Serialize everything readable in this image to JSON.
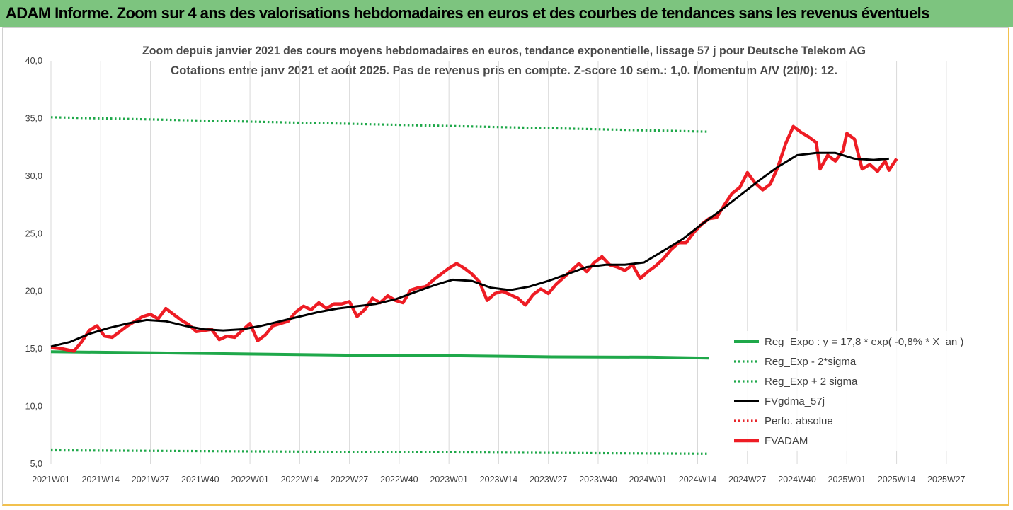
{
  "header": {
    "title": "ADAM Informe. Zoom sur 4 ans des valorisations hebdomadaires en euros et des courbes de tendances sans les revenus éventuels"
  },
  "chart_data": {
    "type": "line",
    "title": "Zoom depuis janvier 2021 des cours moyens hebdomadaires en euros, tendance exponentielle, lissage 57 j pour Deutsche Telekom AG",
    "subtitle": "Cotations entre janv 2021 et août 2025. Pas de revenus pris en compte. Z-score 10 sem.: 1,0. Momentum A/V (20/0): 12.",
    "xlabel": "",
    "ylabel": "",
    "ylim": [
      5,
      40
    ],
    "yticks": [
      "5,0",
      "10,0",
      "15,0",
      "20,0",
      "25,0",
      "30,0",
      "35,0",
      "40,0"
    ],
    "xticks": [
      "2021W01",
      "2021W14",
      "2021W27",
      "2021W40",
      "2022W01",
      "2022W14",
      "2022W27",
      "2022W40",
      "2023W01",
      "2023W14",
      "2023W27",
      "2023W40",
      "2024W01",
      "2024W14",
      "2024W27",
      "2024W40",
      "2025W01",
      "2025W14",
      "2025W27"
    ],
    "grid": "vertical",
    "legend_position": "bottom-right",
    "series": [
      {
        "name": "Reg_Expo : y = 17,8 * exp( -0,8% *  X_an )",
        "color": "#1fa84a",
        "style": "solid",
        "points": [
          [
            0,
            14.75
          ],
          [
            27,
            14.65
          ],
          [
            53,
            14.55
          ],
          [
            79,
            14.45
          ],
          [
            105,
            14.4
          ],
          [
            131,
            14.3
          ],
          [
            157,
            14.28
          ],
          [
            172,
            14.2
          ]
        ]
      },
      {
        "name": "Reg_Exp - 2*sigma",
        "color": "#1fa84a",
        "style": "dotted",
        "points": [
          [
            0,
            6.2
          ],
          [
            172,
            5.9
          ]
        ]
      },
      {
        "name": "Reg_Exp + 2 sigma",
        "color": "#1fa84a",
        "style": "dotted",
        "points": [
          [
            0,
            35.1
          ],
          [
            172,
            33.85
          ]
        ]
      },
      {
        "name": "FVgdma_57j",
        "color": "#000000",
        "style": "solid",
        "points": [
          [
            0,
            15.2
          ],
          [
            5,
            15.6
          ],
          [
            10,
            16.3
          ],
          [
            15,
            16.8
          ],
          [
            20,
            17.2
          ],
          [
            25,
            17.5
          ],
          [
            30,
            17.4
          ],
          [
            35,
            17.0
          ],
          [
            40,
            16.7
          ],
          [
            45,
            16.6
          ],
          [
            50,
            16.7
          ],
          [
            55,
            17.0
          ],
          [
            60,
            17.4
          ],
          [
            65,
            17.8
          ],
          [
            70,
            18.2
          ],
          [
            75,
            18.5
          ],
          [
            80,
            18.7
          ],
          [
            85,
            18.9
          ],
          [
            90,
            19.3
          ],
          [
            95,
            19.9
          ],
          [
            100,
            20.5
          ],
          [
            105,
            21.0
          ],
          [
            110,
            20.9
          ],
          [
            115,
            20.3
          ],
          [
            120,
            20.1
          ],
          [
            125,
            20.4
          ],
          [
            130,
            20.9
          ],
          [
            135,
            21.5
          ],
          [
            140,
            22.1
          ],
          [
            145,
            22.3
          ],
          [
            150,
            22.3
          ],
          [
            155,
            22.5
          ],
          [
            160,
            23.5
          ],
          [
            165,
            24.5
          ],
          [
            170,
            25.8
          ],
          [
            175,
            27.0
          ],
          [
            180,
            28.3
          ],
          [
            185,
            29.6
          ],
          [
            190,
            30.8
          ],
          [
            195,
            31.8
          ],
          [
            200,
            32.0
          ],
          [
            205,
            32.0
          ],
          [
            210,
            31.5
          ],
          [
            215,
            31.4
          ],
          [
            219,
            31.5
          ]
        ]
      },
      {
        "name": "Perfo. absolue",
        "color": "#e8242a",
        "style": "dotted",
        "points": []
      },
      {
        "name": "FVADAM",
        "color": "#ee1c24",
        "style": "solid",
        "points": [
          [
            0,
            15.1
          ],
          [
            3,
            15.0
          ],
          [
            6,
            14.8
          ],
          [
            8,
            15.6
          ],
          [
            10,
            16.6
          ],
          [
            12,
            17.0
          ],
          [
            14,
            16.1
          ],
          [
            16,
            16.0
          ],
          [
            18,
            16.5
          ],
          [
            20,
            17.0
          ],
          [
            22,
            17.4
          ],
          [
            24,
            17.8
          ],
          [
            26,
            18.0
          ],
          [
            28,
            17.6
          ],
          [
            30,
            18.5
          ],
          [
            32,
            18.0
          ],
          [
            34,
            17.5
          ],
          [
            36,
            17.1
          ],
          [
            38,
            16.5
          ],
          [
            40,
            16.6
          ],
          [
            42,
            16.7
          ],
          [
            44,
            15.8
          ],
          [
            46,
            16.1
          ],
          [
            48,
            16.0
          ],
          [
            50,
            16.6
          ],
          [
            52,
            17.2
          ],
          [
            54,
            15.7
          ],
          [
            56,
            16.2
          ],
          [
            58,
            17.0
          ],
          [
            60,
            17.2
          ],
          [
            62,
            17.4
          ],
          [
            64,
            18.2
          ],
          [
            66,
            18.7
          ],
          [
            68,
            18.4
          ],
          [
            70,
            19.0
          ],
          [
            72,
            18.5
          ],
          [
            74,
            18.9
          ],
          [
            76,
            18.9
          ],
          [
            78,
            19.1
          ],
          [
            80,
            17.8
          ],
          [
            82,
            18.4
          ],
          [
            84,
            19.4
          ],
          [
            86,
            19.0
          ],
          [
            88,
            19.6
          ],
          [
            90,
            19.2
          ],
          [
            92,
            19.0
          ],
          [
            94,
            20.1
          ],
          [
            96,
            20.3
          ],
          [
            98,
            20.4
          ],
          [
            100,
            21.0
          ],
          [
            102,
            21.5
          ],
          [
            104,
            22.0
          ],
          [
            106,
            22.4
          ],
          [
            108,
            22.0
          ],
          [
            110,
            21.5
          ],
          [
            112,
            20.8
          ],
          [
            114,
            19.2
          ],
          [
            116,
            19.8
          ],
          [
            118,
            20.0
          ],
          [
            120,
            19.7
          ],
          [
            122,
            19.4
          ],
          [
            124,
            18.8
          ],
          [
            126,
            19.7
          ],
          [
            128,
            20.2
          ],
          [
            130,
            19.8
          ],
          [
            132,
            20.6
          ],
          [
            134,
            21.2
          ],
          [
            136,
            21.8
          ],
          [
            138,
            22.4
          ],
          [
            140,
            21.7
          ],
          [
            142,
            22.5
          ],
          [
            144,
            23.0
          ],
          [
            146,
            22.3
          ],
          [
            148,
            22.1
          ],
          [
            150,
            21.8
          ],
          [
            152,
            22.3
          ],
          [
            154,
            21.1
          ],
          [
            156,
            21.7
          ],
          [
            158,
            22.2
          ],
          [
            160,
            22.8
          ],
          [
            162,
            23.6
          ],
          [
            164,
            24.2
          ],
          [
            166,
            24.2
          ],
          [
            168,
            25.1
          ],
          [
            170,
            25.8
          ],
          [
            172,
            26.3
          ],
          [
            174,
            26.4
          ],
          [
            176,
            27.5
          ],
          [
            178,
            28.5
          ],
          [
            180,
            29.0
          ],
          [
            182,
            30.3
          ],
          [
            184,
            29.4
          ],
          [
            186,
            28.8
          ],
          [
            188,
            29.3
          ],
          [
            190,
            30.8
          ],
          [
            192,
            32.8
          ],
          [
            194,
            34.3
          ],
          [
            196,
            33.8
          ],
          [
            198,
            33.4
          ],
          [
            200,
            32.9
          ],
          [
            201,
            30.6
          ],
          [
            203,
            31.8
          ],
          [
            205,
            31.3
          ],
          [
            207,
            32.2
          ],
          [
            208,
            33.7
          ],
          [
            210,
            33.2
          ],
          [
            212,
            30.6
          ],
          [
            214,
            31.0
          ],
          [
            216,
            30.4
          ],
          [
            218,
            31.3
          ],
          [
            219,
            30.5
          ],
          [
            221,
            31.5
          ]
        ]
      }
    ]
  }
}
